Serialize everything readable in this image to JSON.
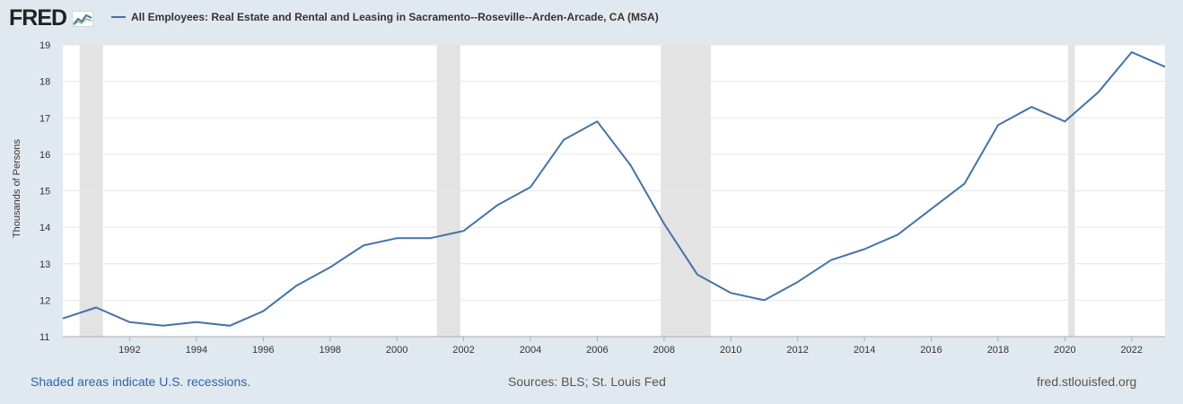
{
  "header": {
    "logo_text": "FRED",
    "logo_icon": "chart-line-icon",
    "title": "All Employees: Real Estate and Rental and Leasing in Sacramento--Roseville--Arden-Arcade, CA (MSA)"
  },
  "footer": {
    "recession_note": "Shaded areas indicate U.S. recessions.",
    "sources": "Sources: BLS; St. Louis Fed",
    "site": "fred.stlouisfed.org"
  },
  "colors": {
    "line": "#4572a7",
    "recession": "#e3e3e3",
    "background": "#e1e9f0",
    "plot": "#ffffff"
  },
  "chart_data": {
    "type": "line",
    "title": "All Employees: Real Estate and Rental and Leasing in Sacramento--Roseville--Arden-Arcade, CA (MSA)",
    "xlabel": "",
    "ylabel": "Thousands of Persons",
    "xlim": [
      1990,
      2023
    ],
    "ylim": [
      11,
      19
    ],
    "yticks": [
      11,
      12,
      13,
      14,
      15,
      16,
      17,
      18,
      19
    ],
    "xticks": [
      1992,
      1994,
      1996,
      1998,
      2000,
      2002,
      2004,
      2006,
      2008,
      2010,
      2012,
      2014,
      2016,
      2018,
      2020,
      2022
    ],
    "grid": true,
    "recessions": [
      [
        1990.5,
        1991.2
      ],
      [
        2001.2,
        2001.9
      ],
      [
        2007.9,
        2009.4
      ],
      [
        2020.1,
        2020.3
      ]
    ],
    "series": [
      {
        "name": "All Employees: Real Estate and Rental and Leasing in Sacramento--Roseville--Arden-Arcade, CA (MSA)",
        "x": [
          1990,
          1991,
          1992,
          1993,
          1994,
          1995,
          1996,
          1997,
          1998,
          1999,
          2000,
          2001,
          2002,
          2003,
          2004,
          2005,
          2006,
          2007,
          2008,
          2009,
          2010,
          2011,
          2012,
          2013,
          2014,
          2015,
          2016,
          2017,
          2018,
          2019,
          2020,
          2021,
          2022,
          2023
        ],
        "values": [
          11.5,
          11.8,
          11.4,
          11.3,
          11.4,
          11.3,
          11.7,
          12.4,
          12.9,
          13.5,
          13.7,
          13.7,
          13.9,
          14.6,
          15.1,
          16.4,
          16.9,
          15.7,
          14.1,
          12.7,
          12.2,
          12.0,
          12.5,
          13.1,
          13.4,
          13.8,
          14.5,
          15.2,
          16.8,
          17.3,
          16.9,
          17.7,
          18.8,
          18.4
        ]
      }
    ]
  }
}
